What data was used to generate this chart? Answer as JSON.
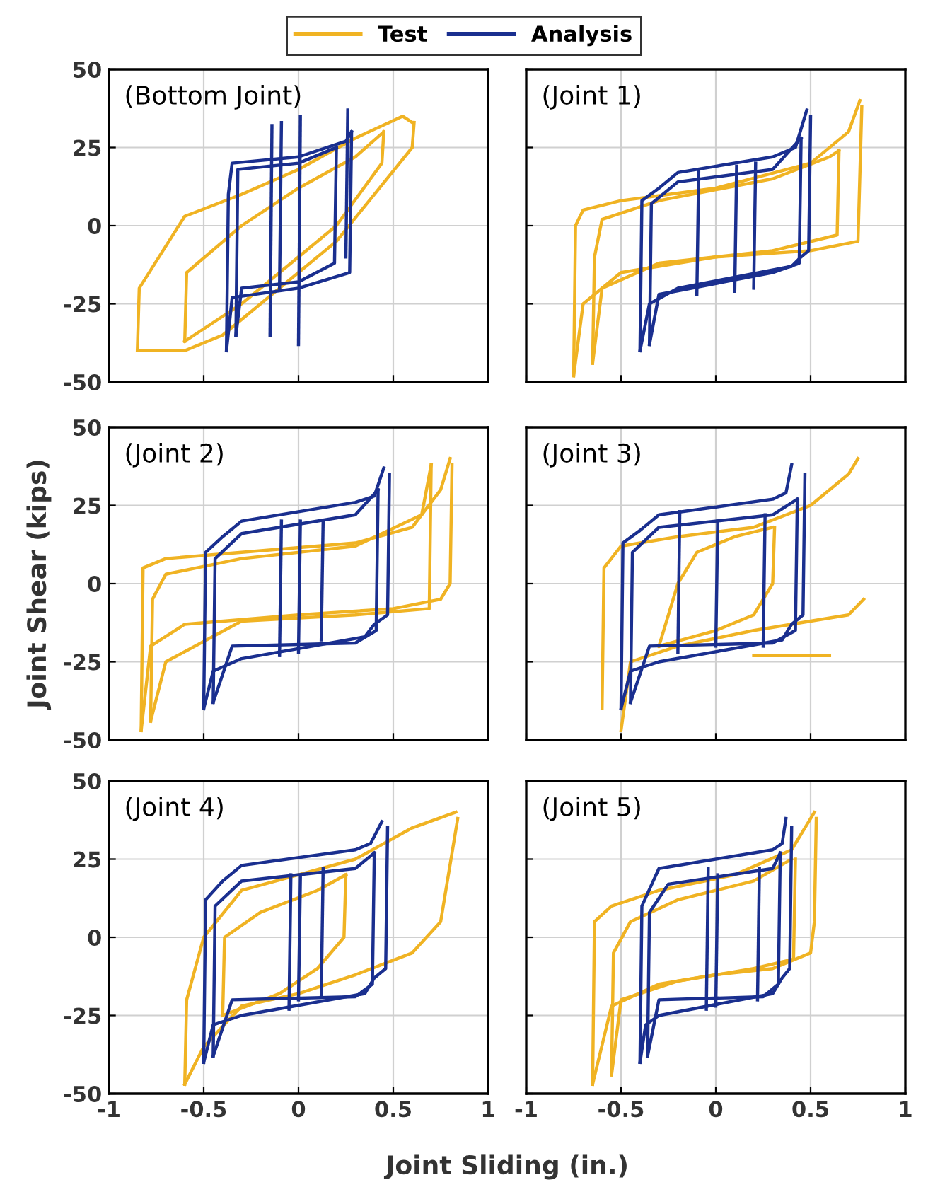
{
  "chart_data": [
    {
      "type": "line",
      "annotations": [
        "(Bottom Joint)"
      ],
      "xlim": [
        -1,
        1
      ],
      "ylim": [
        -50,
        50
      ],
      "xticks": [
        -1,
        -0.5,
        0,
        0.5,
        1
      ],
      "yticks": [
        -50,
        -25,
        0,
        25,
        50
      ],
      "grid": true,
      "legend": "top",
      "tick_labels": "y",
      "marker": "none",
      "line_style": "solid",
      "series": [
        {
          "name": "Test",
          "color": "#f0b323",
          "x": [
            -0.85,
            -0.84,
            -0.6,
            -0.3,
            0,
            0.3,
            0.55,
            0.6
          ],
          "values": [
            -40,
            -20,
            3,
            10,
            18,
            28,
            35,
            33
          ]
        },
        {
          "color": "#f0b323",
          "x": [
            -0.85,
            -0.6,
            -0.4,
            -0.2,
            0,
            0.2,
            0.4,
            0.6,
            0.61
          ],
          "values": [
            -40,
            -40,
            -35,
            -25,
            -15,
            -5,
            10,
            25,
            33
          ]
        },
        {
          "color": "#f0b323",
          "x": [
            -0.6,
            -0.59,
            -0.3,
            0,
            0.3,
            0.45
          ],
          "values": [
            -37,
            -15,
            0,
            12,
            22,
            30
          ]
        },
        {
          "color": "#f0b323",
          "x": [
            -0.6,
            -0.3,
            0,
            0.2,
            0.44,
            0.45
          ],
          "values": [
            -37,
            -25,
            -10,
            0,
            20,
            30
          ]
        },
        {
          "name": "Analysis",
          "color": "#1a2f8f",
          "x": [
            -0.38,
            -0.37,
            -0.35,
            0,
            0.25,
            0.28
          ],
          "values": [
            -40,
            10,
            20,
            22,
            27,
            30
          ]
        },
        {
          "color": "#1a2f8f",
          "x": [
            -0.38,
            -0.35,
            0,
            0.27,
            0.28
          ],
          "values": [
            -40,
            -23,
            -20,
            -15,
            30
          ]
        },
        {
          "color": "#1a2f8f",
          "x": [
            -0.33,
            -0.32,
            0,
            0.2
          ],
          "values": [
            -35,
            18,
            20,
            25
          ]
        },
        {
          "color": "#1a2f8f",
          "x": [
            -0.33,
            -0.3,
            0,
            0.19,
            0.2
          ],
          "values": [
            -35,
            -20,
            -18,
            -12,
            25
          ]
        },
        {
          "color": "#1a2f8f",
          "x": [
            -0.15,
            -0.14
          ],
          "values": [
            -35,
            32
          ]
        },
        {
          "color": "#1a2f8f",
          "x": [
            -0.1,
            -0.09
          ],
          "values": [
            -20,
            33
          ]
        },
        {
          "color": "#1a2f8f",
          "x": [
            0,
            0.01
          ],
          "values": [
            -38,
            35
          ]
        },
        {
          "color": "#1a2f8f",
          "x": [
            0.25,
            0.26
          ],
          "values": [
            -10,
            37
          ]
        }
      ]
    },
    {
      "type": "line",
      "annotations": [
        "(Joint 1)"
      ],
      "xlim": [
        -1,
        1
      ],
      "ylim": [
        -50,
        50
      ],
      "xticks": [
        -1,
        -0.5,
        0,
        0.5,
        1
      ],
      "yticks": [
        -50,
        -25,
        0,
        25,
        50
      ],
      "grid": true,
      "tick_labels": false,
      "marker": "none",
      "line_style": "solid",
      "series": [
        {
          "color": "#f0b323",
          "x": [
            -0.75,
            -0.74,
            -0.7,
            -0.5,
            0,
            0.5,
            0.7,
            0.76
          ],
          "values": [
            -48,
            0,
            5,
            8,
            12,
            20,
            30,
            40
          ]
        },
        {
          "color": "#f0b323",
          "x": [
            -0.75,
            -0.7,
            -0.5,
            0,
            0.5,
            0.75,
            0.77
          ],
          "values": [
            -48,
            -25,
            -15,
            -10,
            -8,
            -5,
            38
          ]
        },
        {
          "color": "#f0b323",
          "x": [
            -0.65,
            -0.64,
            -0.6,
            -0.3,
            0.3,
            0.6,
            0.65
          ],
          "values": [
            -44,
            -10,
            2,
            8,
            15,
            22,
            24
          ]
        },
        {
          "color": "#f0b323",
          "x": [
            -0.65,
            -0.6,
            -0.3,
            0.3,
            0.64,
            0.65
          ],
          "values": [
            -44,
            -20,
            -12,
            -8,
            -3,
            24
          ]
        },
        {
          "color": "#1a2f8f",
          "x": [
            -0.4,
            -0.39,
            -0.3,
            -0.2,
            0.3,
            0.42,
            0.48
          ],
          "values": [
            -40,
            8,
            12,
            17,
            22,
            25,
            37
          ]
        },
        {
          "color": "#1a2f8f",
          "x": [
            -0.4,
            -0.35,
            -0.2,
            0.4,
            0.45,
            0.49,
            0.5
          ],
          "values": [
            -40,
            -25,
            -20,
            -13,
            -10,
            -8,
            35
          ]
        },
        {
          "color": "#1a2f8f",
          "x": [
            -0.35,
            -0.34,
            -0.2,
            0.3,
            0.45
          ],
          "values": [
            -38,
            7,
            14,
            18,
            28
          ]
        },
        {
          "color": "#1a2f8f",
          "x": [
            -0.35,
            -0.3,
            0.3,
            0.44,
            0.45
          ],
          "values": [
            -38,
            -22,
            -15,
            -12,
            28
          ]
        },
        {
          "color": "#1a2f8f",
          "x": [
            -0.1,
            -0.09
          ],
          "values": [
            -22,
            18
          ]
        },
        {
          "color": "#1a2f8f",
          "x": [
            0.1,
            0.11
          ],
          "values": [
            -21,
            19
          ]
        },
        {
          "color": "#1a2f8f",
          "x": [
            0.2,
            0.21
          ],
          "values": [
            -20,
            20
          ]
        }
      ]
    },
    {
      "type": "line",
      "annotations": [
        "(Joint 2)"
      ],
      "ylabel": "Joint Shear (kips)",
      "xlim": [
        -1,
        1
      ],
      "ylim": [
        -50,
        50
      ],
      "xticks": [
        -1,
        -0.5,
        0,
        0.5,
        1
      ],
      "yticks": [
        -50,
        -25,
        0,
        25,
        50
      ],
      "grid": true,
      "tick_labels": "y",
      "marker": "none",
      "line_style": "solid",
      "series": [
        {
          "color": "#f0b323",
          "x": [
            -0.83,
            -0.82,
            -0.7,
            -0.3,
            0.3,
            0.6,
            0.75,
            0.8
          ],
          "values": [
            -47,
            5,
            8,
            10,
            13,
            18,
            30,
            40
          ]
        },
        {
          "color": "#f0b323",
          "x": [
            -0.83,
            -0.78,
            -0.6,
            0,
            0.5,
            0.75,
            0.8,
            0.81
          ],
          "values": [
            -47,
            -20,
            -13,
            -10,
            -8,
            -5,
            0,
            38
          ]
        },
        {
          "color": "#f0b323",
          "x": [
            -0.78,
            -0.77,
            -0.7,
            -0.3,
            0.3,
            0.65,
            0.7
          ],
          "values": [
            -44,
            -5,
            3,
            8,
            12,
            22,
            38
          ]
        },
        {
          "color": "#f0b323",
          "x": [
            -0.78,
            -0.7,
            -0.3,
            0.3,
            0.69,
            0.7
          ],
          "values": [
            -44,
            -25,
            -12,
            -10,
            -8,
            38
          ]
        },
        {
          "color": "#1a2f8f",
          "x": [
            -0.5,
            -0.49,
            -0.4,
            -0.3,
            0.3,
            0.4,
            0.45
          ],
          "values": [
            -40,
            10,
            15,
            20,
            26,
            28,
            37
          ]
        },
        {
          "color": "#1a2f8f",
          "x": [
            -0.5,
            -0.45,
            -0.3,
            0.35,
            0.4,
            0.47,
            0.48
          ],
          "values": [
            -40,
            -28,
            -24,
            -17,
            -13,
            -10,
            35
          ]
        },
        {
          "color": "#1a2f8f",
          "x": [
            -0.45,
            -0.44,
            -0.3,
            0.3,
            0.42
          ],
          "values": [
            -38,
            8,
            16,
            22,
            30
          ]
        },
        {
          "color": "#1a2f8f",
          "x": [
            -0.45,
            -0.35,
            0.3,
            0.41,
            0.42
          ],
          "values": [
            -38,
            -20,
            -19,
            -15,
            30
          ]
        },
        {
          "color": "#1a2f8f",
          "x": [
            -0.1,
            -0.09
          ],
          "values": [
            -23,
            20
          ]
        },
        {
          "color": "#1a2f8f",
          "x": [
            0,
            0.01
          ],
          "values": [
            -22,
            20
          ]
        },
        {
          "color": "#1a2f8f",
          "x": [
            0.12,
            0.13
          ],
          "values": [
            -18,
            20
          ]
        }
      ]
    },
    {
      "type": "line",
      "annotations": [
        "(Joint 3)"
      ],
      "xlim": [
        -1,
        1
      ],
      "ylim": [
        -50,
        50
      ],
      "xticks": [
        -1,
        -0.5,
        0,
        0.5,
        1
      ],
      "yticks": [
        -50,
        -25,
        0,
        25,
        50
      ],
      "grid": true,
      "tick_labels": false,
      "marker": "none",
      "line_style": "solid",
      "series": [
        {
          "color": "#f0b323",
          "x": [
            -0.6,
            -0.59,
            -0.5,
            -0.2,
            0.2,
            0.5,
            0.7,
            0.75
          ],
          "values": [
            -40,
            5,
            12,
            15,
            18,
            25,
            35,
            40
          ]
        },
        {
          "color": "#f0b323",
          "x": [
            -0.5,
            -0.45,
            -0.2,
            0.2,
            0.5,
            0.7,
            0.78
          ],
          "values": [
            -47,
            -25,
            -20,
            -15,
            -12,
            -10,
            -5
          ]
        },
        {
          "color": "#f0b323",
          "x": [
            -0.3,
            -0.2,
            -0.1,
            0.1,
            0.3
          ],
          "values": [
            -20,
            0,
            10,
            15,
            18
          ]
        },
        {
          "color": "#f0b323",
          "x": [
            -0.3,
            0,
            0.2,
            0.3,
            0.31
          ],
          "values": [
            -20,
            -15,
            -10,
            0,
            18
          ]
        },
        {
          "color": "#f0b323",
          "x": [
            0.2,
            0.6
          ],
          "values": [
            -23,
            -23
          ]
        },
        {
          "color": "#1a2f8f",
          "x": [
            -0.5,
            -0.49,
            -0.4,
            -0.3,
            0.3,
            0.37,
            0.4
          ],
          "values": [
            -40,
            13,
            17,
            22,
            27,
            29,
            38
          ]
        },
        {
          "color": "#1a2f8f",
          "x": [
            -0.5,
            -0.45,
            -0.3,
            0.35,
            0.4,
            0.46,
            0.47
          ],
          "values": [
            -40,
            -28,
            -25,
            -18,
            -13,
            -10,
            35
          ]
        },
        {
          "color": "#1a2f8f",
          "x": [
            -0.45,
            -0.44,
            -0.3,
            0.3,
            0.43
          ],
          "values": [
            -38,
            10,
            18,
            22,
            27
          ]
        },
        {
          "color": "#1a2f8f",
          "x": [
            -0.45,
            -0.35,
            0.3,
            0.42,
            0.43
          ],
          "values": [
            -38,
            -20,
            -19,
            -15,
            27
          ]
        },
        {
          "color": "#1a2f8f",
          "x": [
            -0.2,
            -0.19
          ],
          "values": [
            -22,
            23
          ]
        },
        {
          "color": "#1a2f8f",
          "x": [
            0,
            0.01
          ],
          "values": [
            -20,
            20
          ]
        },
        {
          "color": "#1a2f8f",
          "x": [
            0.25,
            0.26
          ],
          "values": [
            -20,
            22
          ]
        }
      ]
    },
    {
      "type": "line",
      "annotations": [
        "(Joint 4)"
      ],
      "xlim": [
        -1,
        1
      ],
      "ylim": [
        -50,
        50
      ],
      "xticks": [
        -1,
        -0.5,
        0,
        0.5,
        1
      ],
      "yticks": [
        -50,
        -25,
        0,
        25,
        50
      ],
      "grid": true,
      "marker": "none",
      "line_style": "solid",
      "series": [
        {
          "color": "#f0b323",
          "x": [
            -0.6,
            -0.59,
            -0.5,
            -0.3,
            0,
            0.3,
            0.6,
            0.83
          ],
          "values": [
            -47,
            -20,
            0,
            15,
            20,
            25,
            35,
            40
          ]
        },
        {
          "color": "#f0b323",
          "x": [
            -0.6,
            -0.5,
            -0.3,
            0,
            0.3,
            0.6,
            0.75,
            0.84
          ],
          "values": [
            -47,
            -35,
            -22,
            -18,
            -12,
            -5,
            5,
            38
          ]
        },
        {
          "color": "#f0b323",
          "x": [
            -0.4,
            -0.39,
            -0.2,
            0.1,
            0.25
          ],
          "values": [
            -25,
            0,
            8,
            15,
            20
          ]
        },
        {
          "color": "#f0b323",
          "x": [
            -0.4,
            -0.1,
            0.1,
            0.24,
            0.25
          ],
          "values": [
            -25,
            -18,
            -10,
            0,
            20
          ]
        },
        {
          "color": "#1a2f8f",
          "x": [
            -0.5,
            -0.49,
            -0.4,
            -0.3,
            0.3,
            0.38,
            0.44
          ],
          "values": [
            -40,
            12,
            18,
            23,
            28,
            30,
            37
          ]
        },
        {
          "color": "#1a2f8f",
          "x": [
            -0.5,
            -0.45,
            -0.3,
            0.35,
            0.4,
            0.46,
            0.47
          ],
          "values": [
            -40,
            -28,
            -25,
            -18,
            -13,
            -10,
            35
          ]
        },
        {
          "color": "#1a2f8f",
          "x": [
            -0.45,
            -0.44,
            -0.3,
            0.3,
            0.4
          ],
          "values": [
            -38,
            10,
            18,
            22,
            27
          ]
        },
        {
          "color": "#1a2f8f",
          "x": [
            -0.45,
            -0.35,
            0.3,
            0.39,
            0.4
          ],
          "values": [
            -38,
            -20,
            -19,
            -15,
            27
          ]
        },
        {
          "color": "#1a2f8f",
          "x": [
            -0.05,
            -0.04
          ],
          "values": [
            -23,
            20
          ]
        },
        {
          "color": "#1a2f8f",
          "x": [
            0,
            0.01
          ],
          "values": [
            -20,
            19
          ]
        },
        {
          "color": "#1a2f8f",
          "x": [
            0.12,
            0.13
          ],
          "values": [
            -19,
            22
          ]
        }
      ]
    },
    {
      "type": "line",
      "annotations": [
        "(Joint 5)"
      ],
      "xlabel": "Joint Sliding (in.)",
      "xlim": [
        -1,
        1
      ],
      "ylim": [
        -50,
        50
      ],
      "xticks": [
        -1,
        -0.5,
        0,
        0.5,
        1
      ],
      "yticks": [
        -50,
        -25,
        0,
        25,
        50
      ],
      "grid": true,
      "tick_labels": "x",
      "marker": "none",
      "line_style": "solid",
      "series": [
        {
          "color": "#f0b323",
          "x": [
            -0.65,
            -0.64,
            -0.55,
            -0.3,
            0.1,
            0.4,
            0.5,
            0.52
          ],
          "values": [
            -47,
            5,
            10,
            15,
            20,
            28,
            38,
            40
          ]
        },
        {
          "color": "#f0b323",
          "x": [
            -0.65,
            -0.55,
            -0.3,
            0,
            0.3,
            0.5,
            0.52,
            0.53
          ],
          "values": [
            -47,
            -22,
            -15,
            -12,
            -10,
            -5,
            5,
            38
          ]
        },
        {
          "color": "#f0b323",
          "x": [
            -0.55,
            -0.54,
            -0.45,
            -0.2,
            0.2,
            0.4
          ],
          "values": [
            -44,
            -5,
            5,
            12,
            18,
            25
          ]
        },
        {
          "color": "#f0b323",
          "x": [
            -0.55,
            -0.5,
            -0.2,
            0.2,
            0.41,
            0.42
          ],
          "values": [
            -44,
            -20,
            -14,
            -10,
            -7,
            25
          ]
        },
        {
          "color": "#1a2f8f",
          "x": [
            -0.4,
            -0.39,
            -0.33,
            -0.3,
            0.3,
            0.35,
            0.37
          ],
          "values": [
            -40,
            10,
            18,
            22,
            28,
            30,
            38
          ]
        },
        {
          "color": "#1a2f8f",
          "x": [
            -0.4,
            -0.37,
            -0.3,
            0.3,
            0.35,
            0.39,
            0.4
          ],
          "values": [
            -40,
            -28,
            -25,
            -18,
            -13,
            -10,
            35
          ]
        },
        {
          "color": "#1a2f8f",
          "x": [
            -0.36,
            -0.35,
            -0.25,
            0.3,
            0.34
          ],
          "values": [
            -38,
            8,
            17,
            22,
            27
          ]
        },
        {
          "color": "#1a2f8f",
          "x": [
            -0.36,
            -0.3,
            0.25,
            0.33,
            0.34
          ],
          "values": [
            -38,
            -20,
            -19,
            -15,
            27
          ]
        },
        {
          "color": "#1a2f8f",
          "x": [
            -0.05,
            -0.04
          ],
          "values": [
            -23,
            22
          ]
        },
        {
          "color": "#1a2f8f",
          "x": [
            0,
            0.01
          ],
          "values": [
            -22,
            20
          ]
        },
        {
          "color": "#1a2f8f",
          "x": [
            0.22,
            0.23
          ],
          "values": [
            -20,
            22
          ]
        }
      ]
    }
  ]
}
